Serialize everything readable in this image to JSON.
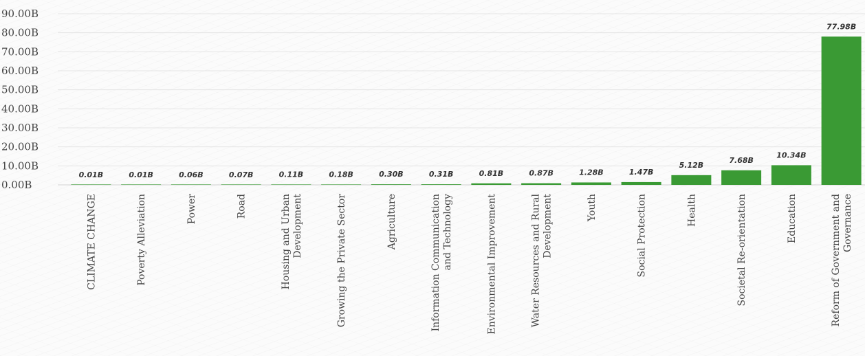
{
  "chart_data": {
    "type": "bar",
    "title": "",
    "xlabel": "",
    "ylabel": "",
    "ylim": [
      0,
      90
    ],
    "yticks": [
      "0.00B",
      "10.00B",
      "20.00B",
      "30.00B",
      "40.00B",
      "50.00B",
      "60.00B",
      "70.00B",
      "80.00B",
      "90.00B"
    ],
    "grid": true,
    "legend": "none",
    "bar_color": "#3a9a34",
    "categories": [
      [
        "CLIMATE CHANGE"
      ],
      [
        "Poverty Alleviation"
      ],
      [
        "Power"
      ],
      [
        "Road"
      ],
      [
        "Housing and Urban",
        "Development"
      ],
      [
        "Growing the Private Sector"
      ],
      [
        "Agriculture"
      ],
      [
        "Information Communication",
        "and Technology"
      ],
      [
        "Environmental Improvement"
      ],
      [
        "Water Resources and Rural",
        "Development"
      ],
      [
        "Youth"
      ],
      [
        "Social Protection"
      ],
      [
        "Health"
      ],
      [
        "Societal Re-orientation"
      ],
      [
        "Education"
      ],
      [
        "Reform of Government and",
        "Governance"
      ]
    ],
    "values": [
      0.01,
      0.01,
      0.06,
      0.07,
      0.11,
      0.18,
      0.3,
      0.31,
      0.81,
      0.87,
      1.28,
      1.47,
      5.12,
      7.68,
      10.34,
      77.98
    ],
    "data_labels": [
      "0.01B",
      "0.01B",
      "0.06B",
      "0.07B",
      "0.11B",
      "0.18B",
      "0.30B",
      "0.31B",
      "0.81B",
      "0.87B",
      "1.28B",
      "1.47B",
      "5.12B",
      "7.68B",
      "10.34B",
      "77.98B"
    ]
  }
}
